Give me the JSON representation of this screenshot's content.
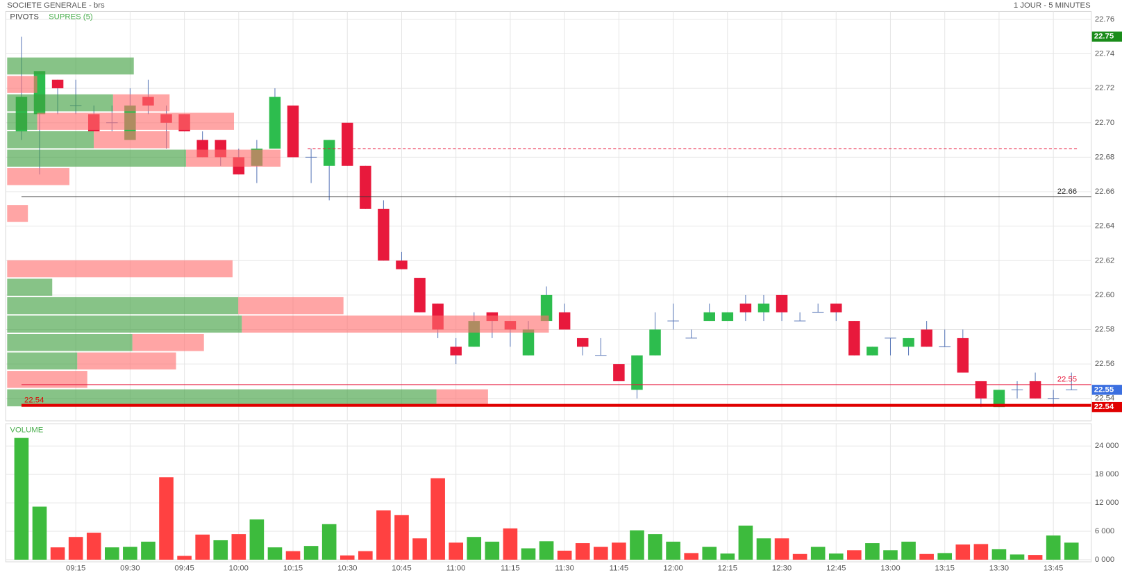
{
  "header": {
    "title": "SOCIETE GENERALE - brs",
    "period": "1 JOUR - 5 MINUTES"
  },
  "chart_data": [
    {
      "type": "candlestick",
      "indicators": [
        "PIVOTS",
        "SUPRES (5)"
      ],
      "indicator_colors": [
        "#444444",
        "#4caf50"
      ],
      "categories": [
        null,
        null,
        null,
        "09:15",
        null,
        null,
        "09:30",
        null,
        null,
        "09:45",
        null,
        null,
        "10:00",
        null,
        null,
        "10:15",
        null,
        null,
        "10:30",
        null,
        null,
        "10:45",
        null,
        null,
        "11:00",
        null,
        null,
        "11:15",
        null,
        null,
        "11:30",
        null,
        null,
        "11:45",
        null,
        null,
        "12:00",
        null,
        null,
        "12:15",
        null,
        null,
        "12:30",
        null,
        null,
        "12:45",
        null,
        null,
        "13:00",
        null,
        null,
        "13:15",
        null,
        null,
        "13:30",
        null,
        null,
        "13:45",
        null
      ],
      "open": [
        22.695,
        22.705,
        22.725,
        22.71,
        22.705,
        22.7,
        22.69,
        22.715,
        22.705,
        22.705,
        22.69,
        22.69,
        22.68,
        22.675,
        22.685,
        22.71,
        22.68,
        22.675,
        22.7,
        22.675,
        22.65,
        22.62,
        22.61,
        22.595,
        22.57,
        22.57,
        22.59,
        22.585,
        22.565,
        22.585,
        22.59,
        22.575,
        22.565,
        22.56,
        22.545,
        22.565,
        22.585,
        22.575,
        22.585,
        22.585,
        22.595,
        22.59,
        22.6,
        22.585,
        22.59,
        22.595,
        22.585,
        22.565,
        22.575,
        22.57,
        22.58,
        22.57,
        22.575,
        22.55,
        22.535,
        22.545,
        22.55,
        22.54,
        22.545
      ],
      "high": [
        22.75,
        22.73,
        22.725,
        22.725,
        22.71,
        22.71,
        22.72,
        22.725,
        22.71,
        22.705,
        22.695,
        22.69,
        22.685,
        22.69,
        22.72,
        22.71,
        22.685,
        22.69,
        22.7,
        22.675,
        22.655,
        22.625,
        22.61,
        22.595,
        22.575,
        22.59,
        22.59,
        22.585,
        22.585,
        22.605,
        22.595,
        22.575,
        22.575,
        22.56,
        22.565,
        22.59,
        22.595,
        22.58,
        22.595,
        22.59,
        22.6,
        22.6,
        22.6,
        22.59,
        22.595,
        22.595,
        22.585,
        22.57,
        22.575,
        22.575,
        22.585,
        22.58,
        22.58,
        22.55,
        22.545,
        22.55,
        22.555,
        22.545,
        22.555
      ],
      "low": [
        22.69,
        22.67,
        22.705,
        22.705,
        22.695,
        22.695,
        22.69,
        22.705,
        22.685,
        22.695,
        22.68,
        22.675,
        22.67,
        22.665,
        22.685,
        22.68,
        22.665,
        22.655,
        22.675,
        22.65,
        22.62,
        22.615,
        22.59,
        22.575,
        22.56,
        22.57,
        22.575,
        22.57,
        22.565,
        22.585,
        22.58,
        22.565,
        22.565,
        22.55,
        22.54,
        22.565,
        22.58,
        22.575,
        22.585,
        22.585,
        22.585,
        22.585,
        22.585,
        22.585,
        22.59,
        22.585,
        22.565,
        22.565,
        22.565,
        22.565,
        22.57,
        22.57,
        22.555,
        22.535,
        22.535,
        22.54,
        22.54,
        22.535,
        22.545
      ],
      "close": [
        22.715,
        22.73,
        22.72,
        22.71,
        22.695,
        22.7,
        22.71,
        22.71,
        22.7,
        22.695,
        22.68,
        22.68,
        22.67,
        22.685,
        22.715,
        22.68,
        22.68,
        22.69,
        22.675,
        22.65,
        22.62,
        22.615,
        22.59,
        22.58,
        22.565,
        22.585,
        22.585,
        22.58,
        22.58,
        22.6,
        22.58,
        22.57,
        22.565,
        22.55,
        22.565,
        22.58,
        22.585,
        22.575,
        22.59,
        22.59,
        22.59,
        22.595,
        22.59,
        22.585,
        22.59,
        22.59,
        22.565,
        22.57,
        22.575,
        22.575,
        22.57,
        22.57,
        22.555,
        22.54,
        22.545,
        22.545,
        22.54,
        22.54,
        22.545
      ],
      "up_color": "#2dbd4e",
      "down_color": "#e8193c",
      "wick_color": "#5a78b8",
      "ylim": [
        22.527,
        22.7646
      ],
      "yticks": [
        22.54,
        22.56,
        22.58,
        {
          "value": 22.6,
          "label": "22.60"
        },
        22.62,
        22.64,
        22.66,
        22.68,
        {
          "value": 22.7,
          "label": "22.70"
        },
        22.72,
        22.74,
        22.76
      ],
      "grid": true,
      "profile": {
        "bins": [
          22.535,
          22.5457,
          22.5564,
          22.5671,
          22.5778,
          22.5885,
          22.5992,
          22.6099,
          22.6206,
          22.6313,
          22.642,
          22.6527,
          22.6634,
          22.6741,
          22.6848,
          22.6955,
          22.7062,
          22.7169,
          22.7276,
          22.7383
        ],
        "buy": [
          600,
          0,
          98,
          175,
          328,
          323,
          63,
          0,
          0,
          0,
          0,
          0,
          0,
          250,
          121,
          42,
          148,
          0,
          177
        ],
        "sell": [
          72,
          112,
          138,
          100,
          429,
          147,
          0,
          315,
          0,
          0,
          29,
          0,
          87,
          132,
          106,
          275,
          79,
          42,
          0
        ],
        "buy_color": "#3d9e3d",
        "sell_color": "#ff6e6e"
      },
      "levels": [
        {
          "value": 22.657,
          "label": "22.66",
          "color": "#333333",
          "width": 1,
          "side": "right"
        },
        {
          "value": 22.685,
          "color": "#e8193c",
          "width": 1,
          "dash": true
        },
        {
          "value": 22.548,
          "label": "22.55",
          "color": "#e8193c",
          "width": 1,
          "side": "right"
        },
        {
          "value": 22.536,
          "label": "22.54",
          "color": "#e00000",
          "width": 4,
          "side": "left"
        }
      ],
      "tags": [
        {
          "value": 22.75,
          "label": "22.75",
          "color": "#1a8c1a"
        },
        {
          "value": 22.545,
          "label": "22.55",
          "color": "#3b6fe0"
        },
        {
          "value": 22.535,
          "label": "22.54",
          "color": "#e00000"
        }
      ]
    },
    {
      "type": "bar",
      "title": "VOLUME",
      "title_color": "#4caf50",
      "values": [
        25700,
        11200,
        2600,
        4800,
        5700,
        2600,
        2700,
        3800,
        17400,
        800,
        5300,
        4100,
        5400,
        8500,
        2600,
        1800,
        2900,
        7500,
        900,
        1800,
        10400,
        9400,
        4500,
        17200,
        3600,
        4800,
        3800,
        6600,
        2400,
        3900,
        1900,
        3500,
        2700,
        3600,
        6200,
        5400,
        3800,
        1400,
        2700,
        1300,
        7200,
        4500,
        4500,
        1200,
        2700,
        1300,
        2000,
        3500,
        2000,
        3800,
        1200,
        1400,
        3200,
        3300,
        2200,
        1100,
        1000,
        5100,
        3600
      ],
      "colors": [
        "#3dbb3d",
        "#3dbb3d",
        "#ff4141",
        "#ff4141",
        "#ff4141",
        "#3dbb3d",
        "#3dbb3d",
        "#3dbb3d",
        "#ff4141",
        "#ff4141",
        "#ff4141",
        "#3dbb3d",
        "#ff4141",
        "#3dbb3d",
        "#3dbb3d",
        "#ff4141",
        "#3dbb3d",
        "#3dbb3d",
        "#ff4141",
        "#ff4141",
        "#ff4141",
        "#ff4141",
        "#ff4141",
        "#ff4141",
        "#ff4141",
        "#3dbb3d",
        "#3dbb3d",
        "#ff4141",
        "#3dbb3d",
        "#3dbb3d",
        "#ff4141",
        "#ff4141",
        "#ff4141",
        "#ff4141",
        "#3dbb3d",
        "#3dbb3d",
        "#3dbb3d",
        "#ff4141",
        "#3dbb3d",
        "#3dbb3d",
        "#3dbb3d",
        "#3dbb3d",
        "#ff4141",
        "#ff4141",
        "#3dbb3d",
        "#3dbb3d",
        "#ff4141",
        "#3dbb3d",
        "#3dbb3d",
        "#3dbb3d",
        "#ff4141",
        "#3dbb3d",
        "#ff4141",
        "#ff4141",
        "#3dbb3d",
        "#3dbb3d",
        "#ff4141",
        "#3dbb3d",
        "#3dbb3d"
      ],
      "ylim": [
        0,
        27800
      ],
      "yticks": [
        {
          "value": 0,
          "label": "0 000"
        },
        {
          "value": 6000,
          "label": "6 000"
        },
        {
          "value": 12000,
          "label": "12 000"
        },
        {
          "value": 18000,
          "label": "18 000"
        },
        {
          "value": 24000,
          "label": "24 000"
        }
      ],
      "grid": true
    }
  ]
}
